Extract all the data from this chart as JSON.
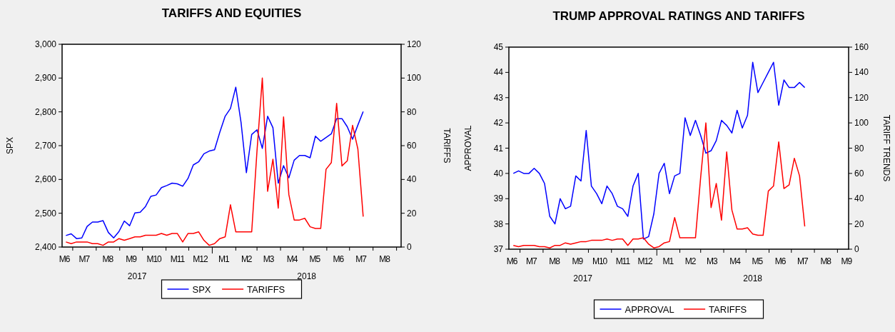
{
  "chart_data": [
    {
      "type": "line",
      "title": "TARIFFS AND EQUITIES",
      "ylabel": "SPX",
      "y2label": "TARIFFS",
      "legend": "bottom",
      "x": [
        "2017-06-22",
        "2017-06-29",
        "2017-07-06",
        "2017-07-13",
        "2017-07-20",
        "2017-07-27",
        "2017-08-03",
        "2017-08-10",
        "2017-08-17",
        "2017-08-24",
        "2017-08-31",
        "2017-09-07",
        "2017-09-14",
        "2017-09-21",
        "2017-09-28",
        "2017-10-05",
        "2017-10-12",
        "2017-10-19",
        "2017-10-26",
        "2017-11-02",
        "2017-11-09",
        "2017-11-16",
        "2017-11-23",
        "2017-11-30",
        "2017-12-07",
        "2017-12-14",
        "2017-12-21",
        "2017-12-28",
        "2018-01-04",
        "2018-01-11",
        "2018-01-18",
        "2018-01-25",
        "2018-02-01",
        "2018-02-08",
        "2018-02-15",
        "2018-02-22",
        "2018-03-01",
        "2018-03-08",
        "2018-03-15",
        "2018-03-22",
        "2018-03-29",
        "2018-04-05",
        "2018-04-12",
        "2018-04-19",
        "2018-04-26",
        "2018-05-03",
        "2018-05-10",
        "2018-05-17",
        "2018-05-24",
        "2018-05-31",
        "2018-06-07",
        "2018-06-14",
        "2018-06-21",
        "2018-06-28",
        "2018-07-05",
        "2018-07-12",
        "2018-07-19"
      ],
      "series": [
        {
          "name": "SPX",
          "color": "#0000ff",
          "values": [
            2434,
            2439,
            2425,
            2427,
            2461,
            2474,
            2474,
            2478,
            2443,
            2427,
            2446,
            2477,
            2463,
            2501,
            2503,
            2520,
            2550,
            2554,
            2576,
            2582,
            2589,
            2587,
            2580,
            2603,
            2643,
            2652,
            2676,
            2684,
            2688,
            2740,
            2787,
            2810,
            2873,
            2768,
            2620,
            2733,
            2747,
            2692,
            2787,
            2753,
            2589,
            2641,
            2605,
            2657,
            2671,
            2671,
            2664,
            2728,
            2713,
            2724,
            2735,
            2780,
            2780,
            2756,
            2719,
            2761,
            2801
          ]
        },
        {
          "name": "TARIFFS",
          "color": "#ff0000",
          "axis": "y2",
          "values": [
            3,
            2,
            3,
            3,
            3,
            2,
            2,
            1,
            3,
            3,
            5,
            4,
            5,
            6,
            6,
            7,
            7,
            7,
            8,
            7,
            8,
            8,
            3,
            8,
            8,
            9,
            4,
            1,
            2,
            5,
            6,
            25,
            9,
            9,
            9,
            9,
            57,
            100,
            33,
            52,
            23,
            77,
            31,
            16,
            16,
            17,
            12,
            11,
            11,
            46,
            50,
            85,
            48,
            51,
            72,
            58,
            18
          ]
        }
      ],
      "xlim": [
        "2017-06-17",
        "2018-09-07"
      ],
      "xticks": [
        {
          "value": "2017-06-20",
          "label": "M6"
        },
        {
          "value": "2017-07-01",
          "label": null
        },
        {
          "value": "2017-07-16",
          "label": "M7"
        },
        {
          "value": "2017-08-01",
          "label": null
        },
        {
          "value": "2017-08-16",
          "label": "M8"
        },
        {
          "value": "2017-09-01",
          "label": null
        },
        {
          "value": "2017-09-16",
          "label": "M9"
        },
        {
          "value": "2017-10-01",
          "label": null
        },
        {
          "value": "2017-10-16",
          "label": "M10"
        },
        {
          "value": "2017-11-01",
          "label": null
        },
        {
          "value": "2017-11-16",
          "label": "M11"
        },
        {
          "value": "2017-12-01",
          "label": null
        },
        {
          "value": "2017-12-16",
          "label": "M12"
        },
        {
          "value": "2018-01-01",
          "label": null
        },
        {
          "value": "2018-01-16",
          "label": "M1"
        },
        {
          "value": "2018-02-01",
          "label": null
        },
        {
          "value": "2018-02-15",
          "label": "M2"
        },
        {
          "value": "2018-03-01",
          "label": null
        },
        {
          "value": "2018-03-16",
          "label": "M3"
        },
        {
          "value": "2018-04-01",
          "label": null
        },
        {
          "value": "2018-04-16",
          "label": "M4"
        },
        {
          "value": "2018-05-01",
          "label": null
        },
        {
          "value": "2018-05-16",
          "label": "M5"
        },
        {
          "value": "2018-06-01",
          "label": null
        },
        {
          "value": "2018-06-16",
          "label": "M6"
        },
        {
          "value": "2018-07-01",
          "label": null
        },
        {
          "value": "2018-07-16",
          "label": "M7"
        },
        {
          "value": "2018-08-01",
          "label": null
        },
        {
          "value": "2018-08-16",
          "label": "M8"
        },
        {
          "value": "2018-09-01",
          "label": null
        }
      ],
      "ylim": [
        2400,
        3000
      ],
      "yticks": [
        {
          "value": 2400,
          "label": "2,400"
        },
        {
          "value": 2500,
          "label": "2,500"
        },
        {
          "value": 2600,
          "label": "2,600"
        },
        {
          "value": 2700,
          "label": "2,700"
        },
        {
          "value": 2800,
          "label": "2,800"
        },
        {
          "value": 2900,
          "label": "2,900"
        },
        {
          "value": 3000,
          "label": "3,000"
        }
      ],
      "y2lim": [
        0,
        120
      ],
      "y2ticks": [
        0,
        20,
        40,
        60,
        80,
        100,
        120
      ],
      "annotations": [
        "2017",
        "2018"
      ]
    },
    {
      "type": "line",
      "title": "TRUMP APPROVAL RATINGS AND TARIFFS",
      "ylabel": "APPROVAL",
      "y2label": "TARIFF TRENDS",
      "legend": "bottom",
      "x": [
        "2017-06-22",
        "2017-06-29",
        "2017-07-06",
        "2017-07-13",
        "2017-07-20",
        "2017-07-27",
        "2017-08-03",
        "2017-08-10",
        "2017-08-17",
        "2017-08-24",
        "2017-08-31",
        "2017-09-07",
        "2017-09-14",
        "2017-09-21",
        "2017-09-28",
        "2017-10-05",
        "2017-10-12",
        "2017-10-19",
        "2017-10-26",
        "2017-11-02",
        "2017-11-09",
        "2017-11-16",
        "2017-11-23",
        "2017-11-30",
        "2017-12-07",
        "2017-12-14",
        "2017-12-21",
        "2017-12-28",
        "2018-01-04",
        "2018-01-11",
        "2018-01-18",
        "2018-01-25",
        "2018-02-01",
        "2018-02-08",
        "2018-02-15",
        "2018-02-22",
        "2018-03-01",
        "2018-03-08",
        "2018-03-15",
        "2018-03-22",
        "2018-03-29",
        "2018-04-05",
        "2018-04-12",
        "2018-04-19",
        "2018-04-26",
        "2018-05-03",
        "2018-05-10",
        "2018-05-17",
        "2018-05-24",
        "2018-05-31",
        "2018-06-07",
        "2018-06-14",
        "2018-06-21",
        "2018-06-28",
        "2018-07-05",
        "2018-07-12",
        "2018-07-19"
      ],
      "series": [
        {
          "name": "APPROVAL",
          "color": "#0000ff",
          "values": [
            40.0,
            40.1,
            40.0,
            40.0,
            40.2,
            40.0,
            39.6,
            38.3,
            38.0,
            39.0,
            38.6,
            38.7,
            39.9,
            39.7,
            41.7,
            39.5,
            39.2,
            38.8,
            39.5,
            39.2,
            38.7,
            38.6,
            38.3,
            39.5,
            40.0,
            37.4,
            37.5,
            38.4,
            40.0,
            40.4,
            39.2,
            39.9,
            40.0,
            42.2,
            41.5,
            42.1,
            41.5,
            40.8,
            40.9,
            41.3,
            42.1,
            41.9,
            41.6,
            42.5,
            41.8,
            42.3,
            44.4,
            43.2,
            43.6,
            44.0,
            44.4,
            42.7,
            43.7,
            43.4,
            43.4,
            43.6,
            43.4
          ]
        },
        {
          "name": "TARIFFS",
          "color": "#ff0000",
          "axis": "y2",
          "values": [
            3,
            2,
            3,
            3,
            3,
            2,
            2,
            1,
            3,
            3,
            5,
            4,
            5,
            6,
            6,
            7,
            7,
            7,
            8,
            7,
            8,
            8,
            3,
            8,
            8,
            9,
            4,
            1,
            2,
            5,
            6,
            25,
            9,
            9,
            9,
            9,
            57,
            100,
            33,
            52,
            23,
            77,
            31,
            16,
            16,
            17,
            12,
            11,
            11,
            46,
            50,
            85,
            48,
            51,
            72,
            58,
            18
          ]
        }
      ],
      "xlim": [
        "2017-06-16",
        "2018-09-16"
      ],
      "xticks": [
        {
          "value": "2017-06-20",
          "label": "M6"
        },
        {
          "value": "2017-07-01",
          "label": null
        },
        {
          "value": "2017-07-16",
          "label": "M7"
        },
        {
          "value": "2017-08-01",
          "label": null
        },
        {
          "value": "2017-08-16",
          "label": "M8"
        },
        {
          "value": "2017-09-01",
          "label": null
        },
        {
          "value": "2017-09-16",
          "label": "M9"
        },
        {
          "value": "2017-10-01",
          "label": null
        },
        {
          "value": "2017-10-16",
          "label": "M10"
        },
        {
          "value": "2017-11-01",
          "label": null
        },
        {
          "value": "2017-11-16",
          "label": "M11"
        },
        {
          "value": "2017-12-01",
          "label": null
        },
        {
          "value": "2017-12-16",
          "label": "M12"
        },
        {
          "value": "2018-01-01",
          "label": null
        },
        {
          "value": "2018-01-16",
          "label": "M1"
        },
        {
          "value": "2018-02-01",
          "label": null
        },
        {
          "value": "2018-02-15",
          "label": "M2"
        },
        {
          "value": "2018-03-01",
          "label": null
        },
        {
          "value": "2018-03-16",
          "label": "M3"
        },
        {
          "value": "2018-04-01",
          "label": null
        },
        {
          "value": "2018-04-16",
          "label": "M4"
        },
        {
          "value": "2018-05-01",
          "label": null
        },
        {
          "value": "2018-05-16",
          "label": "M5"
        },
        {
          "value": "2018-06-01",
          "label": null
        },
        {
          "value": "2018-06-16",
          "label": "M6"
        },
        {
          "value": "2018-07-01",
          "label": null
        },
        {
          "value": "2018-07-16",
          "label": "M7"
        },
        {
          "value": "2018-08-01",
          "label": null
        },
        {
          "value": "2018-08-16",
          "label": "M8"
        },
        {
          "value": "2018-09-01",
          "label": null
        },
        {
          "value": "2018-09-13",
          "label": "M9"
        }
      ],
      "ylim": [
        37,
        45
      ],
      "yticks": [
        37,
        38,
        39,
        40,
        41,
        42,
        43,
        44,
        45
      ],
      "y2lim": [
        0,
        160
      ],
      "y2ticks": [
        0,
        20,
        40,
        60,
        80,
        100,
        120,
        140,
        160
      ],
      "annotations": [
        "2017",
        "2018"
      ]
    }
  ]
}
